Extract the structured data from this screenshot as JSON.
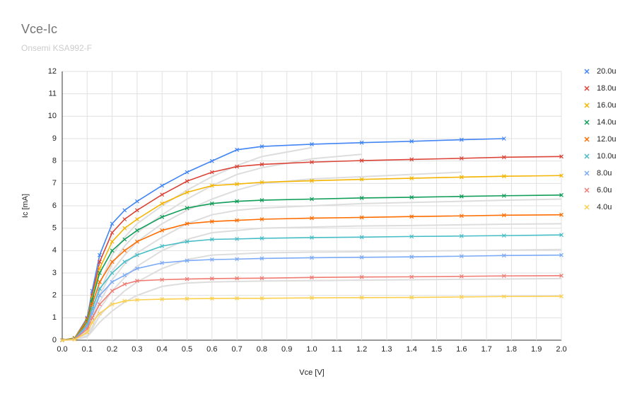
{
  "chart_data": {
    "type": "line",
    "title": "Vce-Ic",
    "subtitle": "Onsemi KSA992-F",
    "x_label": "Vce [V]",
    "y_label": "Ic [mA]",
    "x": [
      0,
      0.05,
      0.1,
      0.12,
      0.15,
      0.2,
      0.25,
      0.3,
      0.4,
      0.5,
      0.6,
      0.7,
      0.8,
      1.0,
      1.2,
      1.4,
      1.6,
      1.77,
      2.0
    ],
    "series": [
      {
        "color": "#dddddd",
        "values": [
          0,
          0.05,
          0.5,
          1.2,
          2.5,
          3.8,
          4.6,
          5.2,
          6.0,
          6.7,
          7.3,
          7.8,
          8.2,
          8.6,
          null,
          null,
          null,
          null,
          null
        ]
      },
      {
        "color": "#dddddd",
        "values": [
          0,
          0.05,
          0.45,
          1.0,
          2.2,
          3.4,
          4.2,
          4.8,
          5.6,
          6.3,
          6.9,
          7.4,
          7.7,
          8.1,
          8.3,
          null,
          null,
          null,
          null
        ]
      },
      {
        "color": "#dddddd",
        "values": [
          0,
          0.04,
          0.4,
          0.9,
          2.0,
          3.1,
          3.8,
          4.4,
          5.2,
          5.8,
          6.3,
          6.7,
          7.0,
          7.2,
          7.3,
          7.4,
          7.5,
          null,
          null
        ]
      },
      {
        "color": "#dddddd",
        "values": [
          0,
          0.04,
          0.35,
          0.8,
          1.7,
          2.7,
          3.4,
          3.9,
          4.6,
          5.2,
          5.6,
          5.8,
          5.9,
          6.0,
          6.1,
          6.15,
          6.2,
          6.25,
          6.3
        ]
      },
      {
        "color": "#dddddd",
        "values": [
          0,
          0.03,
          0.3,
          0.6,
          1.4,
          2.2,
          2.8,
          3.3,
          4.0,
          4.5,
          4.8,
          4.9,
          5.0,
          5.05,
          5.1,
          5.12,
          5.15,
          5.18,
          5.2
        ]
      },
      {
        "color": "#dddddd",
        "values": [
          0,
          0.02,
          0.2,
          0.5,
          1.1,
          1.7,
          2.2,
          2.6,
          3.2,
          3.6,
          3.8,
          3.85,
          3.9,
          3.93,
          3.95,
          3.97,
          4.0,
          4.02,
          4.05
        ]
      },
      {
        "color": "#dddddd",
        "values": [
          0,
          0.02,
          0.15,
          0.4,
          0.8,
          1.3,
          1.7,
          2.0,
          2.4,
          2.55,
          2.6,
          2.62,
          2.64,
          2.66,
          2.68,
          2.7,
          2.72,
          2.73,
          2.75
        ]
      },
      {
        "name": "20.0u",
        "color": "#4285f4",
        "values": [
          0,
          0.1,
          1.0,
          2.2,
          3.8,
          5.2,
          5.8,
          6.2,
          6.9,
          7.5,
          8.0,
          8.5,
          8.65,
          8.75,
          8.82,
          8.88,
          8.95,
          9.0,
          null
        ]
      },
      {
        "name": "18.0u",
        "color": "#db4437",
        "values": [
          0,
          0.1,
          0.95,
          2.0,
          3.5,
          4.8,
          5.4,
          5.8,
          6.5,
          7.1,
          7.5,
          7.75,
          7.85,
          7.95,
          8.02,
          8.07,
          8.12,
          8.17,
          8.2
        ]
      },
      {
        "name": "16.0u",
        "color": "#f4b400",
        "values": [
          0,
          0.1,
          0.9,
          1.9,
          3.2,
          4.4,
          5.0,
          5.4,
          6.1,
          6.6,
          6.9,
          6.97,
          7.05,
          7.12,
          7.18,
          7.23,
          7.28,
          7.32,
          7.35
        ]
      },
      {
        "name": "14.0u",
        "color": "#0f9d58",
        "values": [
          0,
          0.08,
          0.85,
          1.8,
          3.0,
          4.0,
          4.5,
          4.9,
          5.5,
          5.9,
          6.1,
          6.2,
          6.25,
          6.3,
          6.35,
          6.38,
          6.42,
          6.45,
          6.48
        ]
      },
      {
        "name": "12.0u",
        "color": "#ff6d01",
        "values": [
          0,
          0.07,
          0.8,
          1.6,
          2.6,
          3.5,
          4.0,
          4.4,
          4.9,
          5.2,
          5.3,
          5.35,
          5.4,
          5.45,
          5.48,
          5.52,
          5.55,
          5.58,
          5.6
        ]
      },
      {
        "name": "10.0u",
        "color": "#46bdc6",
        "values": [
          0,
          0.06,
          0.7,
          1.4,
          2.3,
          3.0,
          3.5,
          3.8,
          4.2,
          4.4,
          4.5,
          4.52,
          4.55,
          4.58,
          4.6,
          4.63,
          4.65,
          4.67,
          4.7
        ]
      },
      {
        "name": "8.0u",
        "color": "#7baaf7",
        "values": [
          0,
          0.05,
          0.6,
          1.2,
          2.0,
          2.6,
          2.9,
          3.2,
          3.45,
          3.55,
          3.6,
          3.62,
          3.65,
          3.68,
          3.7,
          3.72,
          3.75,
          3.78,
          3.8
        ]
      },
      {
        "name": "6.0u",
        "color": "#f07b72",
        "values": [
          0,
          0.04,
          0.5,
          1.0,
          1.6,
          2.2,
          2.5,
          2.65,
          2.7,
          2.73,
          2.75,
          2.76,
          2.77,
          2.8,
          2.82,
          2.83,
          2.85,
          2.87,
          2.88
        ]
      },
      {
        "name": "4.0u",
        "color": "#fcd04f",
        "values": [
          0,
          0.03,
          0.35,
          0.8,
          1.2,
          1.6,
          1.75,
          1.8,
          1.83,
          1.85,
          1.86,
          1.87,
          1.87,
          1.89,
          1.9,
          1.91,
          1.93,
          1.95,
          1.96
        ]
      }
    ],
    "xlim": [
      0,
      2
    ],
    "ylim": [
      0,
      12
    ],
    "xticks": [
      {
        "value": 0,
        "label": "0.0"
      },
      0.1,
      0.2,
      0.3,
      0.4,
      0.5,
      0.6,
      0.7,
      0.8,
      0.9,
      {
        "value": 1,
        "label": "1.0"
      },
      1.1,
      1.2,
      1.3,
      1.4,
      1.5,
      1.6,
      1.7,
      1.8,
      1.9,
      {
        "value": 2,
        "label": "2.0"
      }
    ],
    "yticks": [
      0,
      1,
      2,
      3,
      4,
      5,
      6,
      7,
      8,
      9,
      10,
      11,
      12
    ],
    "grid": true,
    "legend": "right"
  }
}
